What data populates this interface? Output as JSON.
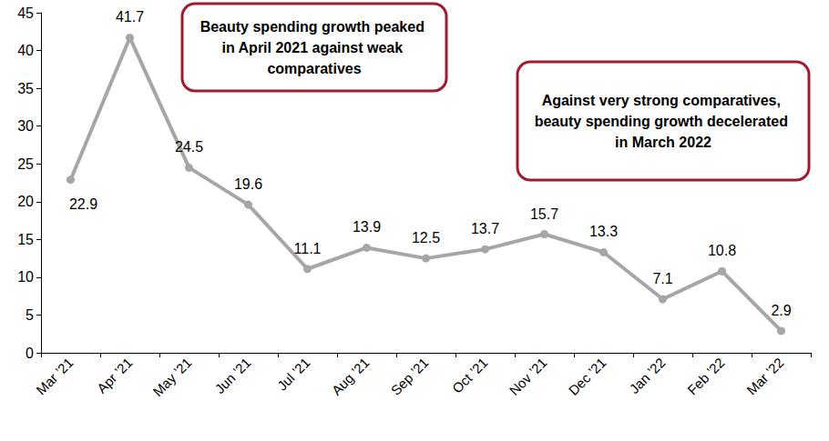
{
  "chart_data": {
    "type": "line",
    "categories": [
      "Mar ’21",
      "Apr ’21",
      "May ’21",
      "Jun ’21",
      "Jul ’21",
      "Aug ’21",
      "Sep ’21",
      "Oct ’21",
      "Nov ’21",
      "Dec ’21",
      "Jan ’22",
      "Feb ’22",
      "Mar ’22"
    ],
    "values": [
      22.9,
      41.7,
      24.5,
      19.6,
      11.1,
      13.9,
      12.5,
      13.7,
      15.7,
      13.3,
      7.1,
      10.8,
      2.9
    ],
    "color": "#a6a6a6",
    "marker": "circle",
    "ylim": [
      0,
      45
    ],
    "yticks": [
      0,
      5,
      10,
      15,
      20,
      25,
      30,
      35,
      40,
      45
    ],
    "grid": false,
    "data_labels": true,
    "annotations": [
      "Beauty spending growth peaked in April 2021 against weak comparatives",
      "Against very strong comparatives, beauty spending growth decelerated in March 2022"
    ]
  }
}
